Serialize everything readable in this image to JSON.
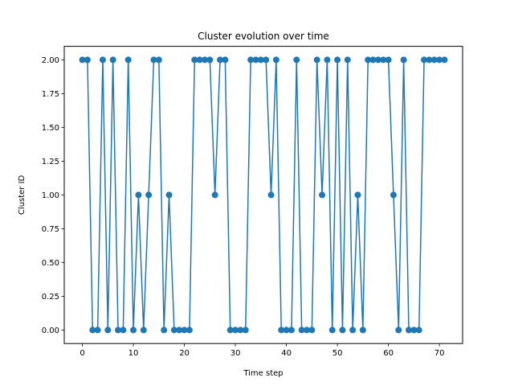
{
  "chart_data": {
    "type": "line",
    "title": "Cluster evolution over time",
    "xlabel": "Time step",
    "ylabel": "Cluster ID",
    "xlim": [
      -3.55,
      74.55
    ],
    "ylim": [
      -0.1,
      2.1
    ],
    "xticks": [
      0,
      10,
      20,
      30,
      40,
      50,
      60,
      70
    ],
    "yticks": [
      0.0,
      0.25,
      0.5,
      0.75,
      1.0,
      1.25,
      1.5,
      1.75,
      2.0
    ],
    "xtick_labels": [
      "0",
      "10",
      "20",
      "30",
      "40",
      "50",
      "60",
      "70"
    ],
    "ytick_labels": [
      "0.00",
      "0.25",
      "0.50",
      "0.75",
      "1.00",
      "1.25",
      "1.50",
      "1.75",
      "2.00"
    ],
    "grid": false,
    "marker": "circle",
    "color": "#1f77b4",
    "series": [
      {
        "x": [
          0,
          1,
          2,
          3,
          4,
          5,
          6,
          7,
          8,
          9,
          10,
          11,
          12,
          13,
          14,
          15,
          16,
          17,
          18,
          19,
          20,
          21,
          22,
          23,
          24,
          25,
          26,
          27,
          28,
          29,
          30,
          31,
          32,
          33,
          34,
          35,
          36,
          37,
          38,
          39,
          40,
          41,
          42,
          43,
          44,
          45,
          46,
          47,
          48,
          49,
          50,
          51,
          52,
          53,
          54,
          55,
          56,
          57,
          58,
          59,
          60,
          61,
          62,
          63,
          64,
          65,
          66,
          67,
          68,
          69,
          70,
          71
        ],
        "values": [
          2,
          2,
          0,
          0,
          2,
          0,
          2,
          0,
          0,
          2,
          0,
          1,
          0,
          1,
          2,
          2,
          0,
          1,
          0,
          0,
          0,
          0,
          2,
          2,
          2,
          2,
          1,
          2,
          2,
          0,
          0,
          0,
          0,
          2,
          2,
          2,
          2,
          1,
          2,
          0,
          0,
          0,
          2,
          0,
          0,
          0,
          2,
          1,
          2,
          0,
          2,
          0,
          2,
          0,
          1,
          0,
          2,
          2,
          2,
          2,
          2,
          1,
          0,
          2,
          0,
          0,
          0,
          2,
          2,
          2,
          2,
          2
        ]
      }
    ]
  }
}
